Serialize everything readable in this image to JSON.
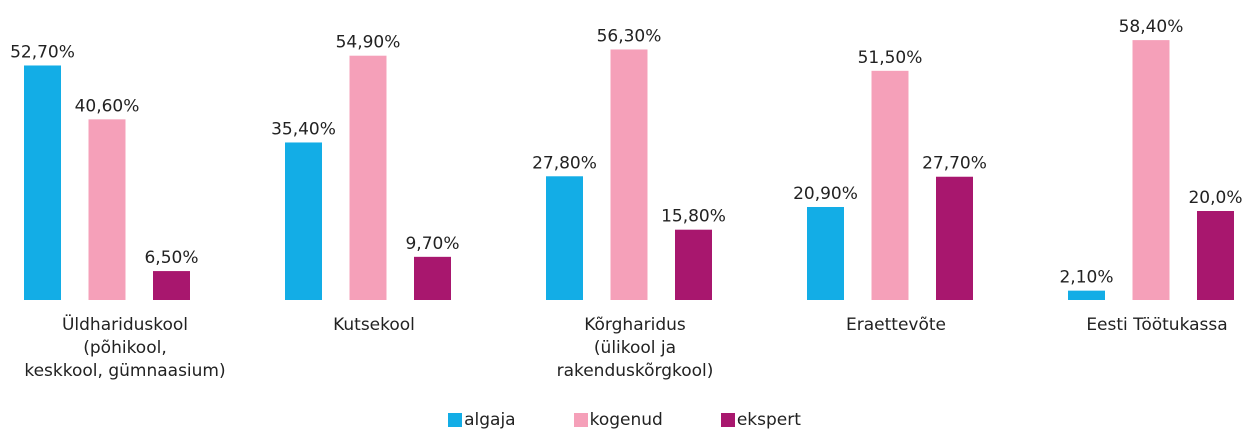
{
  "chart_data": {
    "type": "bar",
    "categories": [
      "Üldhariduskool\n(põhikool,\nkeskkool, gümnaasium)",
      "Kutsekool",
      "Kõrgharidus\n(ülikool ja\nrakenduskõrgkool)",
      "Eraettevõte",
      "Eesti Töötukassa"
    ],
    "series": [
      {
        "name": "algaja",
        "color": "#13ade6",
        "values": [
          52.7,
          35.4,
          27.8,
          20.9,
          2.1
        ],
        "value_labels": [
          "52,70%",
          "35,40%",
          "27,80%",
          "20,90%",
          "2,10%"
        ]
      },
      {
        "name": "kogenud",
        "color": "#f5a0b9",
        "values": [
          40.6,
          54.9,
          56.3,
          51.5,
          58.4
        ],
        "value_labels": [
          "40,60%",
          "54,90%",
          "56,30%",
          "51,50%",
          "58,40%"
        ]
      },
      {
        "name": "ekspert",
        "color": "#a8176e",
        "values": [
          6.5,
          9.7,
          15.8,
          27.7,
          20.0
        ],
        "value_labels": [
          "6,50%",
          "9,70%",
          "15,80%",
          "27,70%",
          "20,0%"
        ]
      }
    ],
    "legend": "bottom"
  }
}
